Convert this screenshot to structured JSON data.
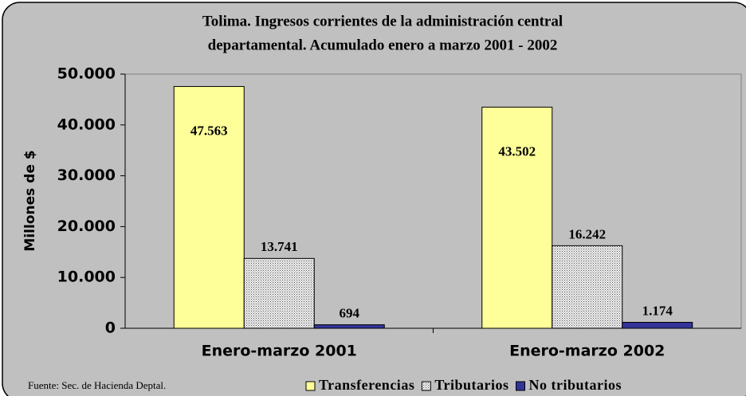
{
  "chart_data": {
    "type": "bar",
    "title": [
      "Tolima. Ingresos corrientes de la administración central",
      "departamental. Acumulado enero a marzo 2001 - 2002"
    ],
    "ylabel": "Millones de $",
    "source": "Fuente: Sec. de Hacienda Deptal.",
    "categories": [
      "Enero-marzo 2001",
      "Enero-marzo 2002"
    ],
    "series": [
      {
        "name": "Transferencias",
        "color": "#ffff99",
        "values": [
          47563,
          43502
        ],
        "value_labels": [
          "47.563",
          "43.502"
        ]
      },
      {
        "name": "Tributarios",
        "color": "#e0e0e0",
        "values": [
          13741,
          16242
        ],
        "value_labels": [
          "13.741",
          "16.242"
        ]
      },
      {
        "name": "No tributarios",
        "color": "#333399",
        "values": [
          694,
          1174
        ],
        "value_labels": [
          "694",
          "1.174"
        ]
      }
    ],
    "ylim": [
      0,
      50000
    ],
    "yticks": [
      0,
      {
        "value": 10000,
        "label": "10.000"
      },
      {
        "value": 20000,
        "label": "20.000"
      },
      {
        "value": 30000,
        "label": "30.000"
      },
      {
        "value": 40000,
        "label": "40.000"
      },
      {
        "value": 50000,
        "label": "50.000"
      }
    ],
    "legend": "bottom-right"
  }
}
